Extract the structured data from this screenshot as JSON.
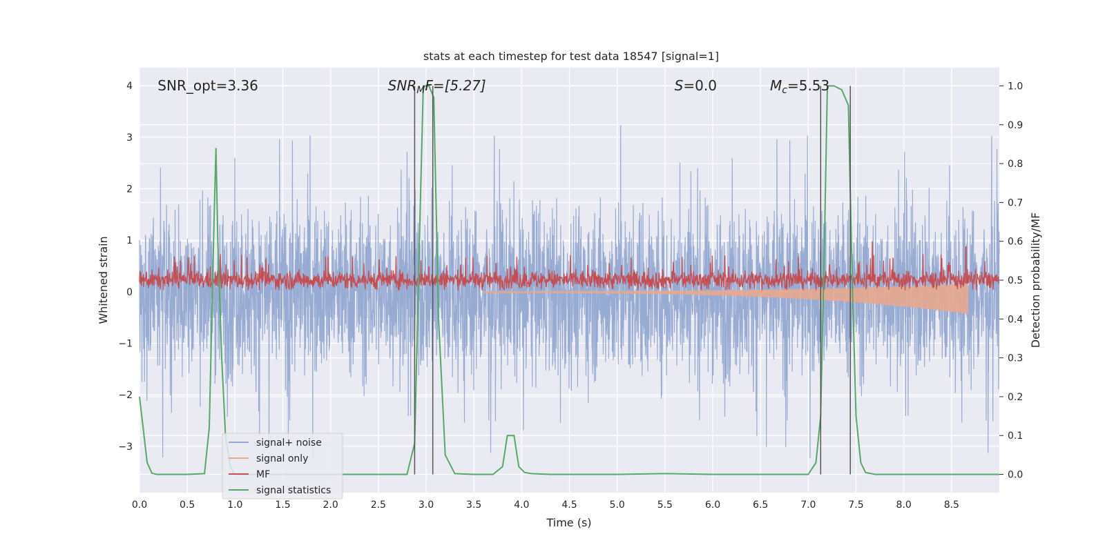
{
  "chart_data": {
    "type": "line",
    "title": "stats at each timestep for test data 18547 [signal=1]",
    "xlabel": "Time (s)",
    "ylabel": "Whitened strain",
    "y2label": "Detection probability/MF",
    "xlim": [
      0,
      9.0
    ],
    "ylim": [
      -3.9,
      4.35
    ],
    "y2lim": [
      -0.047,
      1.047
    ],
    "xticks": [
      "0.0",
      "0.5",
      "1.0",
      "1.5",
      "2.0",
      "2.5",
      "3.0",
      "3.5",
      "4.0",
      "4.5",
      "5.0",
      "5.5",
      "6.0",
      "6.5",
      "7.0",
      "7.5",
      "8.0",
      "8.5"
    ],
    "xtick_values": [
      0,
      0.5,
      1,
      1.5,
      2,
      2.5,
      3,
      3.5,
      4,
      4.5,
      5,
      5.5,
      6,
      6.5,
      7,
      7.5,
      8,
      8.5
    ],
    "yticks": [
      "−3",
      "−2",
      "−1",
      "0",
      "1",
      "2",
      "3",
      "4"
    ],
    "ytick_values": [
      -3,
      -2,
      -1,
      0,
      1,
      2,
      3,
      4
    ],
    "y2ticks": [
      "0.0",
      "0.1",
      "0.2",
      "0.3",
      "0.4",
      "0.5",
      "0.6",
      "0.7",
      "0.8",
      "0.9",
      "1.0"
    ],
    "y2tick_values": [
      0,
      0.1,
      0.2,
      0.3,
      0.4,
      0.5,
      0.6,
      0.7,
      0.8,
      0.9,
      1.0
    ],
    "grid": true,
    "legend_position": "lower-left",
    "annotations": [
      {
        "text": "SNR_opt=3.36",
        "x": 0.19,
        "y": 4.0
      },
      {
        "text": "SNR",
        "sub": "M",
        "tail": "F=[5.27]",
        "italic": true,
        "x": 2.6,
        "y": 4.0
      },
      {
        "text": "S",
        "tail": "=0.0",
        "italic": true,
        "x": 5.6,
        "y": 4.0
      },
      {
        "text": "M",
        "sub": "c",
        "tail": "=5.53",
        "italic": true,
        "x": 6.6,
        "y": 4.0
      }
    ],
    "vertical_lines": [
      2.88,
      3.07,
      7.13,
      7.44
    ],
    "series": [
      {
        "name": "signal+ noise",
        "axis": "left",
        "color": "#92a8d1",
        "kind": "noise",
        "x_range": [
          0,
          9.0
        ],
        "center": 0.0,
        "band_half_width": 1.3,
        "max_peak": 3.3,
        "min_peak": -3.4
      },
      {
        "name": "signal only",
        "axis": "left",
        "color": "#e8a98f",
        "kind": "chirp",
        "x_range": [
          3.6,
          8.67
        ],
        "end_amplitude": 0.4
      },
      {
        "name": "MF",
        "axis": "left",
        "color": "#c44e52",
        "kind": "noise-positive",
        "x_range": [
          0,
          9.0
        ],
        "center": 0.23,
        "spread": 0.18,
        "peaks": [
          {
            "x": 7.67,
            "y": 0.98
          },
          {
            "x": 8.65,
            "y": 0.87
          }
        ]
      },
      {
        "name": "signal statistics",
        "axis": "right",
        "color": "#55a868",
        "kind": "line",
        "x": [
          0.0,
          0.08,
          0.13,
          0.18,
          0.3,
          0.5,
          0.68,
          0.73,
          0.78,
          0.8,
          0.82,
          0.86,
          0.9,
          0.95,
          1.0,
          1.5,
          2.0,
          2.5,
          2.8,
          2.88,
          2.93,
          2.97,
          3.03,
          3.08,
          3.13,
          3.2,
          3.3,
          3.5,
          3.7,
          3.8,
          3.85,
          3.92,
          3.97,
          4.03,
          4.1,
          4.3,
          5.0,
          5.5,
          6.0,
          6.5,
          7.0,
          7.08,
          7.13,
          7.17,
          7.2,
          7.27,
          7.35,
          7.42,
          7.46,
          7.5,
          7.55,
          7.6,
          7.7,
          8.0,
          8.5,
          9.0
        ],
        "values": [
          0.2,
          0.03,
          0.003,
          0.0,
          0.0,
          0.0,
          0.002,
          0.12,
          0.65,
          0.84,
          0.6,
          0.3,
          0.1,
          0.02,
          0.0,
          0.0,
          0.0,
          0.0,
          0.0,
          0.08,
          0.6,
          1.0,
          1.0,
          0.97,
          0.4,
          0.05,
          0.002,
          0.0,
          0.0,
          0.02,
          0.1,
          0.1,
          0.02,
          0.005,
          0.002,
          0.0,
          0.0,
          0.002,
          0.0,
          0.0,
          0.0,
          0.03,
          0.15,
          0.6,
          1.0,
          1.0,
          0.99,
          0.95,
          0.5,
          0.15,
          0.03,
          0.005,
          0.0,
          0.0,
          0.0,
          0.0
        ]
      }
    ]
  }
}
